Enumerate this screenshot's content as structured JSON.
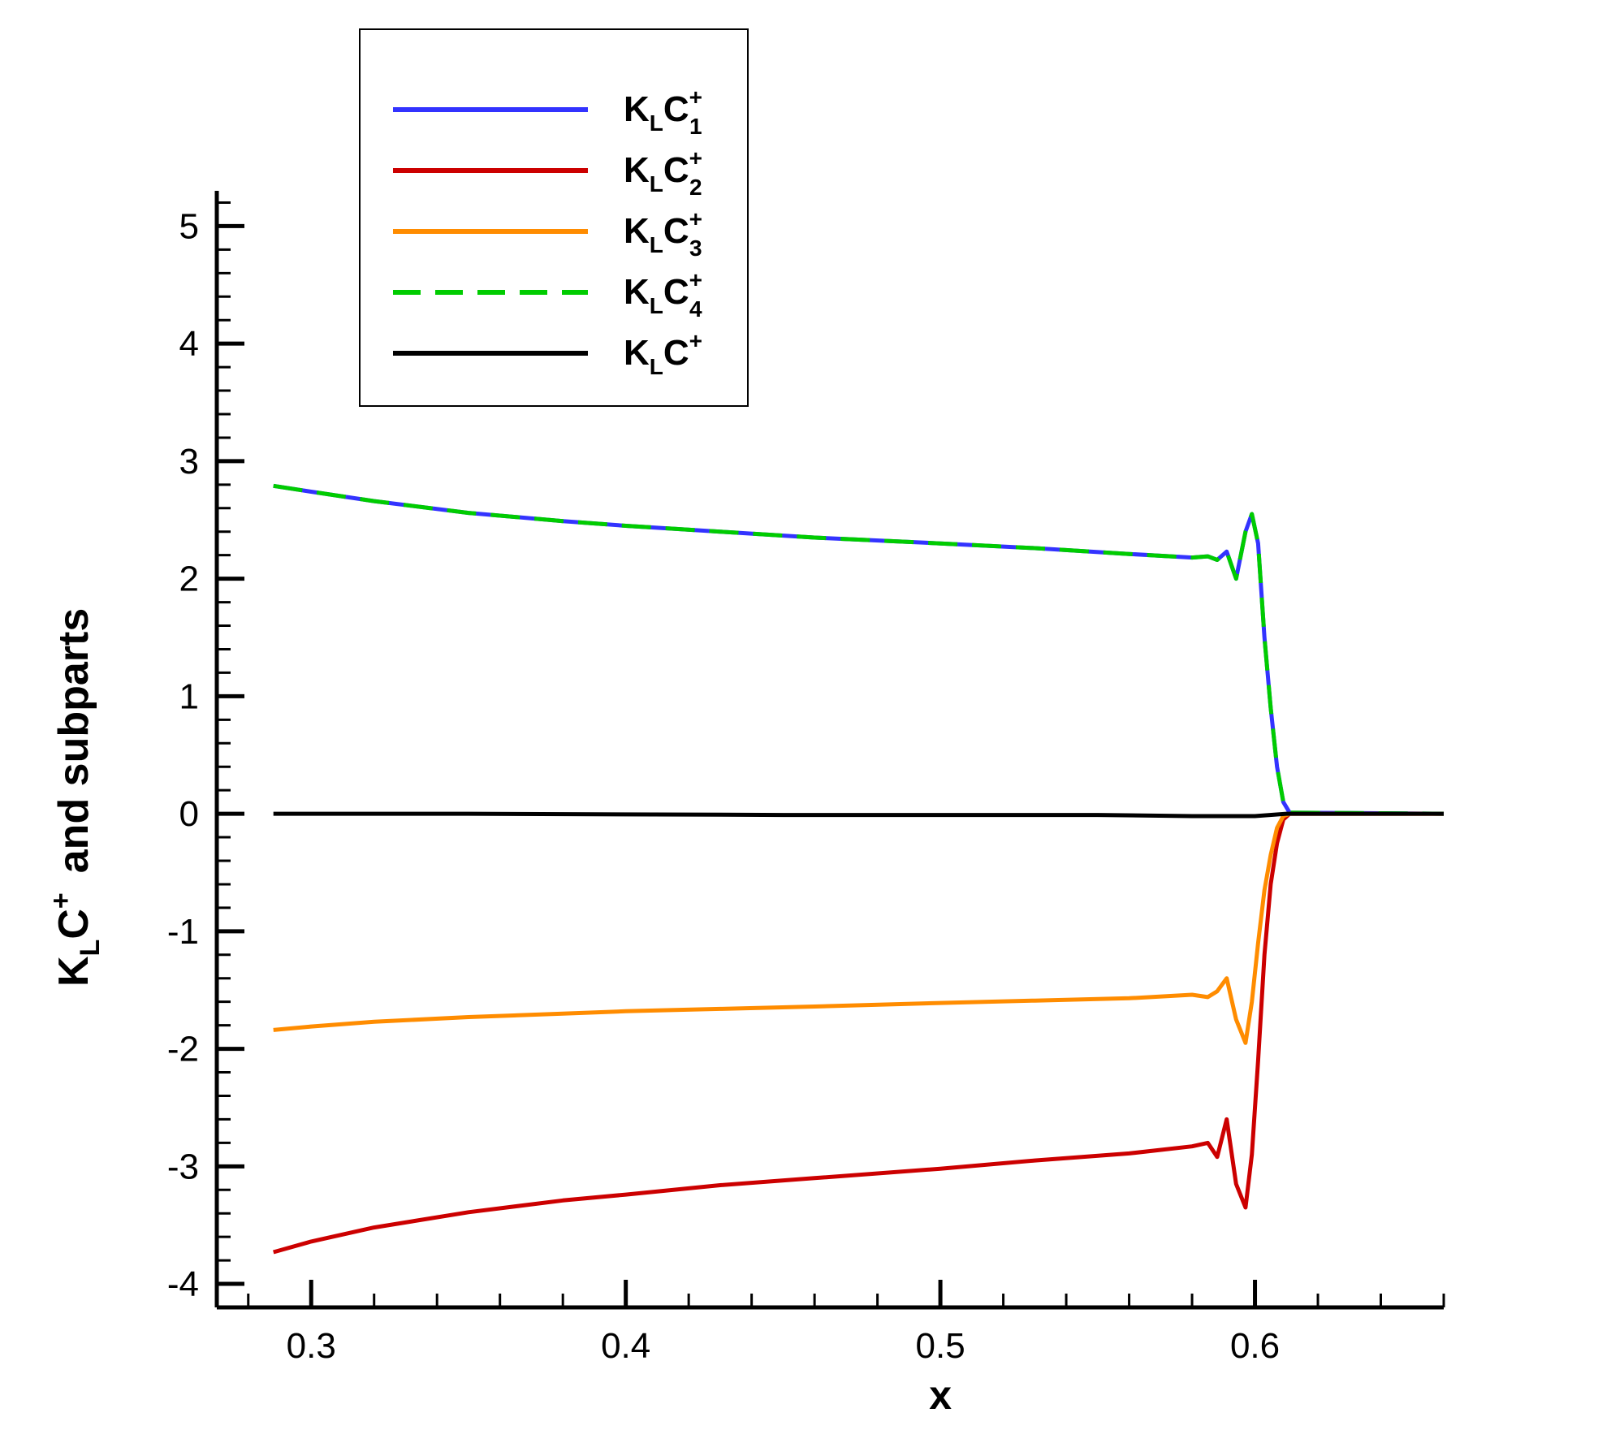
{
  "chart_data": {
    "type": "line",
    "title": "",
    "xlabel": "x",
    "ylabel": {
      "k": "K",
      "sub": "L",
      "c": "C",
      "sup": "+",
      "rest": "and subparts"
    },
    "xlim": [
      0.27,
      0.66
    ],
    "ylim": [
      -4.2,
      5.3
    ],
    "xticks": [
      0.3,
      0.4,
      0.5,
      0.6
    ],
    "xtick_labels": [
      "0.3",
      "0.4",
      "0.5",
      "0.6"
    ],
    "yticks": [
      -4,
      -3,
      -2,
      -1,
      0,
      1,
      2,
      3,
      4,
      5
    ],
    "ytick_labels": [
      "-4",
      "-3",
      "-2",
      "-1",
      "0",
      "1",
      "2",
      "3",
      "4",
      "5"
    ],
    "grid": false,
    "legend_position": "top-left",
    "series": [
      {
        "name": "KLC1+",
        "legend": {
          "k": "K",
          "sub": "L",
          "c": "C",
          "sup": "+",
          "idx": "1"
        },
        "color": "#3333ff",
        "dash": "solid",
        "x": [
          0.288,
          0.3,
          0.32,
          0.35,
          0.38,
          0.4,
          0.43,
          0.46,
          0.5,
          0.53,
          0.56,
          0.58,
          0.585,
          0.588,
          0.591,
          0.594,
          0.597,
          0.599,
          0.601,
          0.603,
          0.605,
          0.607,
          0.609,
          0.611,
          0.66
        ],
        "y": [
          2.79,
          2.74,
          2.66,
          2.56,
          2.49,
          2.45,
          2.4,
          2.35,
          2.3,
          2.26,
          2.21,
          2.18,
          2.19,
          2.16,
          2.23,
          2.0,
          2.4,
          2.55,
          2.3,
          1.5,
          0.9,
          0.4,
          0.1,
          0.01,
          0.0
        ]
      },
      {
        "name": "KLC2+",
        "legend": {
          "k": "K",
          "sub": "L",
          "c": "C",
          "sup": "+",
          "idx": "2"
        },
        "color": "#cc0000",
        "dash": "solid",
        "x": [
          0.288,
          0.3,
          0.32,
          0.35,
          0.38,
          0.4,
          0.43,
          0.46,
          0.5,
          0.53,
          0.56,
          0.58,
          0.585,
          0.588,
          0.591,
          0.594,
          0.597,
          0.599,
          0.601,
          0.603,
          0.605,
          0.607,
          0.609,
          0.611,
          0.66
        ],
        "y": [
          -3.73,
          -3.64,
          -3.52,
          -3.39,
          -3.29,
          -3.24,
          -3.16,
          -3.1,
          -3.02,
          -2.95,
          -2.89,
          -2.83,
          -2.8,
          -2.92,
          -2.6,
          -3.15,
          -3.35,
          -2.9,
          -2.1,
          -1.2,
          -0.6,
          -0.25,
          -0.05,
          0.0,
          0.0
        ]
      },
      {
        "name": "KLC3+",
        "legend": {
          "k": "K",
          "sub": "L",
          "c": "C",
          "sup": "+",
          "idx": "3"
        },
        "color": "#ff8c00",
        "dash": "solid",
        "x": [
          0.288,
          0.3,
          0.32,
          0.35,
          0.38,
          0.4,
          0.43,
          0.46,
          0.5,
          0.53,
          0.56,
          0.58,
          0.585,
          0.588,
          0.591,
          0.594,
          0.597,
          0.599,
          0.601,
          0.603,
          0.605,
          0.607,
          0.609,
          0.611,
          0.66
        ],
        "y": [
          -1.84,
          -1.81,
          -1.77,
          -1.73,
          -1.7,
          -1.68,
          -1.66,
          -1.64,
          -1.61,
          -1.59,
          -1.57,
          -1.54,
          -1.56,
          -1.51,
          -1.4,
          -1.75,
          -1.95,
          -1.6,
          -1.1,
          -0.65,
          -0.35,
          -0.12,
          -0.02,
          0.0,
          0.0
        ]
      },
      {
        "name": "KLC4+",
        "legend": {
          "k": "K",
          "sub": "L",
          "c": "C",
          "sup": "+",
          "idx": "4"
        },
        "color": "#00cc00",
        "dash": "dashed",
        "x": [
          0.288,
          0.3,
          0.32,
          0.35,
          0.38,
          0.4,
          0.43,
          0.46,
          0.5,
          0.53,
          0.56,
          0.58,
          0.585,
          0.588,
          0.591,
          0.594,
          0.597,
          0.599,
          0.601,
          0.603,
          0.605,
          0.607,
          0.609,
          0.611,
          0.66
        ],
        "y": [
          2.79,
          2.74,
          2.66,
          2.56,
          2.49,
          2.45,
          2.4,
          2.35,
          2.3,
          2.26,
          2.21,
          2.18,
          2.19,
          2.16,
          2.23,
          2.0,
          2.4,
          2.55,
          2.3,
          1.5,
          0.9,
          0.4,
          0.1,
          0.01,
          0.0
        ]
      },
      {
        "name": "KLC+",
        "legend": {
          "k": "K",
          "sub": "L",
          "c": "C",
          "sup": "+",
          "idx": ""
        },
        "color": "#000000",
        "dash": "solid",
        "x": [
          0.288,
          0.35,
          0.45,
          0.55,
          0.58,
          0.59,
          0.6,
          0.61,
          0.66
        ],
        "y": [
          0.0,
          0.0,
          -0.01,
          -0.01,
          -0.02,
          -0.02,
          -0.02,
          0.0,
          0.0
        ]
      }
    ]
  }
}
